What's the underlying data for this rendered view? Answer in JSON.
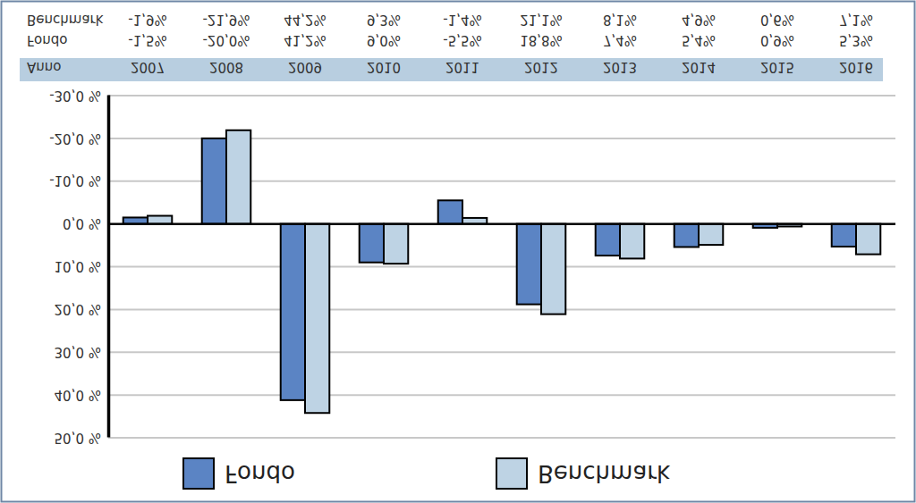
{
  "chart_data": {
    "type": "bar",
    "x_label": "Anno",
    "categories": [
      "2007",
      "2008",
      "2009",
      "2010",
      "2011",
      "2012",
      "2013",
      "2014",
      "2015",
      "2016"
    ],
    "series": [
      {
        "name": "Fondo",
        "color": "#5b84c4",
        "values": [
          -1.5,
          -20.0,
          41.2,
          9.0,
          -5.5,
          18.8,
          7.4,
          5.4,
          0.9,
          5.3
        ],
        "value_labels": [
          "-1,5%",
          "-20,0%",
          "41,2%",
          "9,0%",
          "-5,5%",
          "18,8%",
          "7,4%",
          "5,4%",
          "0,9%",
          "5,3%"
        ]
      },
      {
        "name": "Benchmark",
        "color": "#bed3e4",
        "values": [
          -1.9,
          -21.9,
          44.2,
          9.3,
          -1.4,
          21.1,
          8.1,
          4.9,
          0.6,
          7.1
        ],
        "value_labels": [
          "-1,9%",
          "-21,9%",
          "44,2%",
          "9,3%",
          "-1,4%",
          "21,1%",
          "8,1%",
          "4,9%",
          "0,6%",
          "7,1%"
        ]
      }
    ],
    "ylim": [
      -30,
      50
    ],
    "yticks": [
      {
        "value": -30,
        "label": "-30,0 %"
      },
      {
        "value": -20,
        "label": "-20,0 %"
      },
      {
        "value": -10,
        "label": "-10,0 %"
      },
      {
        "value": 0,
        "label": "0,0 %"
      },
      {
        "value": 10,
        "label": "10,0 %"
      },
      {
        "value": 20,
        "label": "20,0 %"
      },
      {
        "value": 30,
        "label": "30,0 %"
      },
      {
        "value": 40,
        "label": "40,0 %"
      },
      {
        "value": 50,
        "label": "50,0 %"
      }
    ],
    "grid": true,
    "legend": "top"
  }
}
